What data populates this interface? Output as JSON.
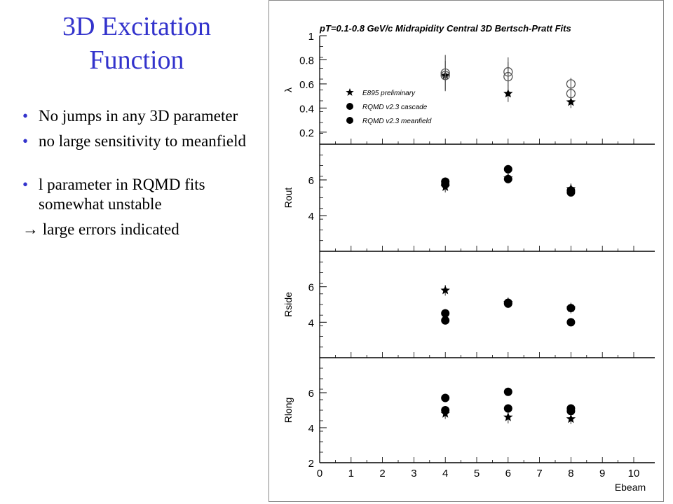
{
  "slide": {
    "title_line1": "3D Excitation",
    "title_line2": "Function",
    "bullets": [
      "No jumps in any 3D parameter",
      "no large sensitivity to meanfield",
      "l parameter in RQMD fits somewhat unstable"
    ],
    "arrow_symbol": "→",
    "arrow_text": "large errors indicated",
    "bullet_symbol": "•",
    "title_color": "#3333cc"
  },
  "chart_data": {
    "type": "scatter",
    "title": "pT=0.1-0.8 GeV/c Midrapidity Central 3D Bertsch-Pratt Fits",
    "xlabel": "Ebeam",
    "xlim": [
      0,
      10
    ],
    "x_ticks": [
      "0",
      "1",
      "2",
      "3",
      "4",
      "5",
      "6",
      "7",
      "8",
      "9",
      "10"
    ],
    "legend": {
      "placement": "upper-left of top panel",
      "entries": [
        "E895 preliminary",
        "RQMD v2.3 cascade",
        "RQMD v2.3 meanfield"
      ]
    },
    "panels": [
      {
        "ylabel": "λ",
        "ylim": [
          0.1,
          1.0
        ],
        "y_ticks": [
          "0.2",
          "0.4",
          "0.6",
          "0.8",
          "1"
        ],
        "series": [
          {
            "name": "E895 preliminary",
            "marker": "star",
            "points": [
              {
                "x": 4,
                "y": 0.67,
                "err": 0.05
              },
              {
                "x": 6,
                "y": 0.52,
                "err": 0.07
              },
              {
                "x": 8,
                "y": 0.45,
                "err": 0.05
              }
            ]
          },
          {
            "name": "RQMD v2.3 cascade",
            "marker": "open-circle",
            "points": [
              {
                "x": 4,
                "y": 0.69,
                "err": 0.15
              },
              {
                "x": 6,
                "y": 0.7,
                "err": 0.12
              },
              {
                "x": 8,
                "y": 0.6,
                "err": 0.05
              }
            ]
          },
          {
            "name": "RQMD v2.3 meanfield",
            "marker": "open-circle",
            "points": [
              {
                "x": 4,
                "y": 0.67,
                "err": 0.12
              },
              {
                "x": 6,
                "y": 0.66,
                "err": 0.12
              },
              {
                "x": 8,
                "y": 0.52,
                "err": 0.05
              }
            ]
          }
        ]
      },
      {
        "ylabel": "Rout",
        "ylim": [
          2,
          8
        ],
        "y_ticks": [
          "4",
          "6"
        ],
        "series": [
          {
            "name": "E895 preliminary",
            "marker": "star",
            "points": [
              {
                "x": 4,
                "y": 5.6,
                "err": 0.3
              },
              {
                "x": 6,
                "y": 6.1,
                "err": 0.3
              },
              {
                "x": 8,
                "y": 5.5,
                "err": 0.3
              }
            ]
          },
          {
            "name": "RQMD v2.3 cascade",
            "marker": "filled-circle",
            "points": [
              {
                "x": 4,
                "y": 5.9,
                "err": 0.15
              },
              {
                "x": 6,
                "y": 6.6,
                "err": 0.15
              },
              {
                "x": 8,
                "y": 5.4,
                "err": 0.15
              }
            ]
          },
          {
            "name": "RQMD v2.3 meanfield",
            "marker": "filled-circle",
            "points": [
              {
                "x": 4,
                "y": 5.75,
                "err": 0.15
              },
              {
                "x": 6,
                "y": 6.05,
                "err": 0.15
              },
              {
                "x": 8,
                "y": 5.3,
                "err": 0.15
              }
            ]
          }
        ]
      },
      {
        "ylabel": "Rside",
        "ylim": [
          2,
          8
        ],
        "y_ticks": [
          "4",
          "6"
        ],
        "series": [
          {
            "name": "E895 preliminary",
            "marker": "star",
            "points": [
              {
                "x": 4,
                "y": 5.8,
                "err": 0.3
              },
              {
                "x": 6,
                "y": 5.1,
                "err": 0.3
              },
              {
                "x": 8,
                "y": 4.8,
                "err": 0.3
              }
            ]
          },
          {
            "name": "RQMD v2.3 cascade",
            "marker": "filled-circle",
            "points": [
              {
                "x": 4,
                "y": 4.5,
                "err": 0.15
              },
              {
                "x": 6,
                "y": 5.1,
                "err": 0.15
              },
              {
                "x": 8,
                "y": 4.8,
                "err": 0.15
              }
            ]
          },
          {
            "name": "RQMD v2.3 meanfield",
            "marker": "filled-circle",
            "points": [
              {
                "x": 4,
                "y": 4.1,
                "err": 0.15
              },
              {
                "x": 6,
                "y": 5.05,
                "err": 0.15
              },
              {
                "x": 8,
                "y": 4.0,
                "err": 0.15
              }
            ]
          }
        ]
      },
      {
        "ylabel": "Rlong",
        "ylim": [
          2,
          8
        ],
        "y_ticks": [
          "2",
          "4",
          "6"
        ],
        "series": [
          {
            "name": "E895 preliminary",
            "marker": "star",
            "points": [
              {
                "x": 4,
                "y": 4.8,
                "err": 0.3
              },
              {
                "x": 6,
                "y": 4.6,
                "err": 0.35
              },
              {
                "x": 8,
                "y": 4.5,
                "err": 0.3
              }
            ]
          },
          {
            "name": "RQMD v2.3 cascade",
            "marker": "filled-circle",
            "points": [
              {
                "x": 4,
                "y": 5.7,
                "err": 0.2
              },
              {
                "x": 6,
                "y": 6.05,
                "err": 0.2
              },
              {
                "x": 8,
                "y": 5.1,
                "err": 0.2
              }
            ]
          },
          {
            "name": "RQMD v2.3 meanfield",
            "marker": "filled-circle",
            "points": [
              {
                "x": 4,
                "y": 5.0,
                "err": 0.2
              },
              {
                "x": 6,
                "y": 5.1,
                "err": 0.2
              },
              {
                "x": 8,
                "y": 4.95,
                "err": 0.2
              }
            ]
          }
        ]
      }
    ]
  }
}
